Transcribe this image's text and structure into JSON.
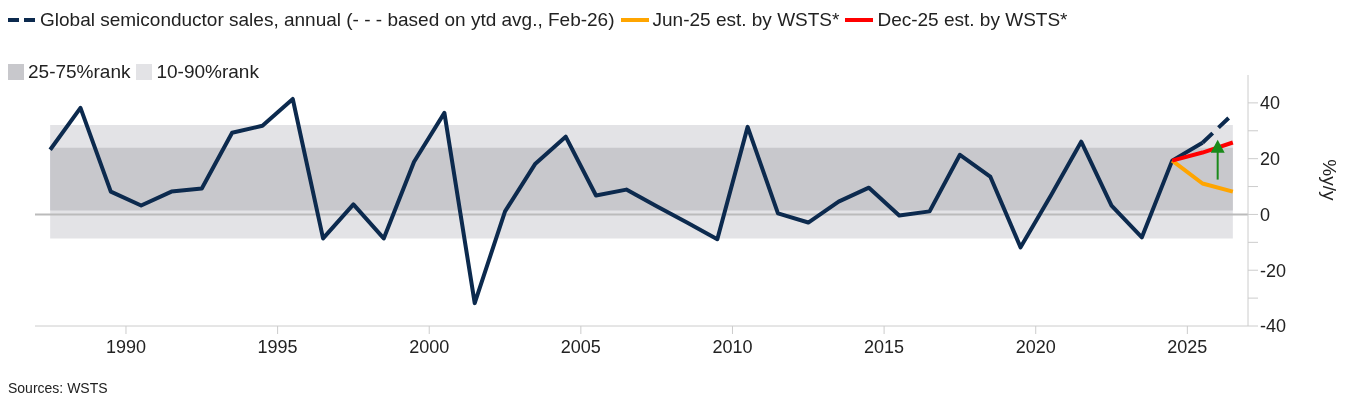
{
  "chart_data": {
    "type": "line",
    "ylabel": "%y/y",
    "xlim": [
      1987,
      2027
    ],
    "xticks": [
      1990,
      1995,
      2000,
      2005,
      2010,
      2015,
      2020,
      2025
    ],
    "ylim": [
      -40,
      50
    ],
    "yticks": [
      -40,
      {
        "value": -30,
        "label": null
      },
      -20,
      {
        "value": -10,
        "label": null
      },
      0,
      {
        "value": 10,
        "label": null
      },
      20,
      {
        "value": 30,
        "label": null
      },
      40
    ],
    "series": [
      {
        "name": "Global semiconductor sales, annual (- - - based on ytd avg., Feb-26)",
        "color": "#0c2a4e",
        "line_style": "solid",
        "x": [
          1987.5,
          1988.5,
          1989.5,
          1990.5,
          1991.5,
          1992.5,
          1993.5,
          1994.5,
          1995.5,
          1996.5,
          1997.5,
          1998.5,
          1999.5,
          2000.5,
          2001.5,
          2002.5,
          2003.5,
          2004.5,
          2005.5,
          2006.5,
          2007.5,
          2008.5,
          2009.5,
          2010.5,
          2011.5,
          2012.5,
          2013.5,
          2014.5,
          2015.5,
          2016.5,
          2017.5,
          2018.5,
          2019.5,
          2020.5,
          2021.5,
          2022.5,
          2023.5,
          2024.5,
          2025.5
        ],
        "values": [
          23.2,
          38.2,
          8.2,
          3.2,
          8.2,
          9.3,
          29.3,
          31.8,
          41.4,
          -8.6,
          3.6,
          -8.6,
          18.9,
          36.4,
          -31.8,
          1.1,
          18.2,
          27.9,
          6.8,
          8.9,
          2.9,
          -2.9,
          -8.9,
          31.4,
          0.4,
          -2.9,
          4.6,
          9.6,
          -0.4,
          1.1,
          21.4,
          13.6,
          -11.8,
          6.8,
          26.1,
          3.2,
          -8.2,
          19.3,
          25.7
        ]
      },
      {
        "color": "#0c2a4e",
        "line_style": "dashed",
        "x": [
          2025.5,
          2026.5
        ],
        "values": [
          25.7,
          36
        ]
      },
      {
        "name": "Jun-25 est. by WSTS*",
        "color": "#ffa500",
        "line_style": "solid",
        "x": [
          2024.5,
          2025.5,
          2026.5
        ],
        "values": [
          19.3,
          11.1,
          8.2
        ]
      },
      {
        "name": "Dec-25 est. by WSTS*",
        "color": "#ff0000",
        "line_style": "solid",
        "x": [
          2024.5,
          2025.5,
          2026.5
        ],
        "values": [
          19.3,
          22.2,
          25.8
        ]
      }
    ],
    "bands": [
      {
        "axis": "y",
        "from": -8.6,
        "to": 32.1,
        "label": "10-90%rank",
        "color": "#e3e3e6"
      },
      {
        "axis": "y",
        "from": 1.4,
        "to": 23.9,
        "label": "25-75%rank",
        "color": "#c8c8cc"
      }
    ],
    "ref_lines": [
      {
        "axis": "y",
        "value": 0,
        "color": "#bbbbbb"
      }
    ],
    "legend": "top left",
    "marker": "none",
    "grid": false,
    "annotations": [
      "Sources: WSTS"
    ]
  }
}
